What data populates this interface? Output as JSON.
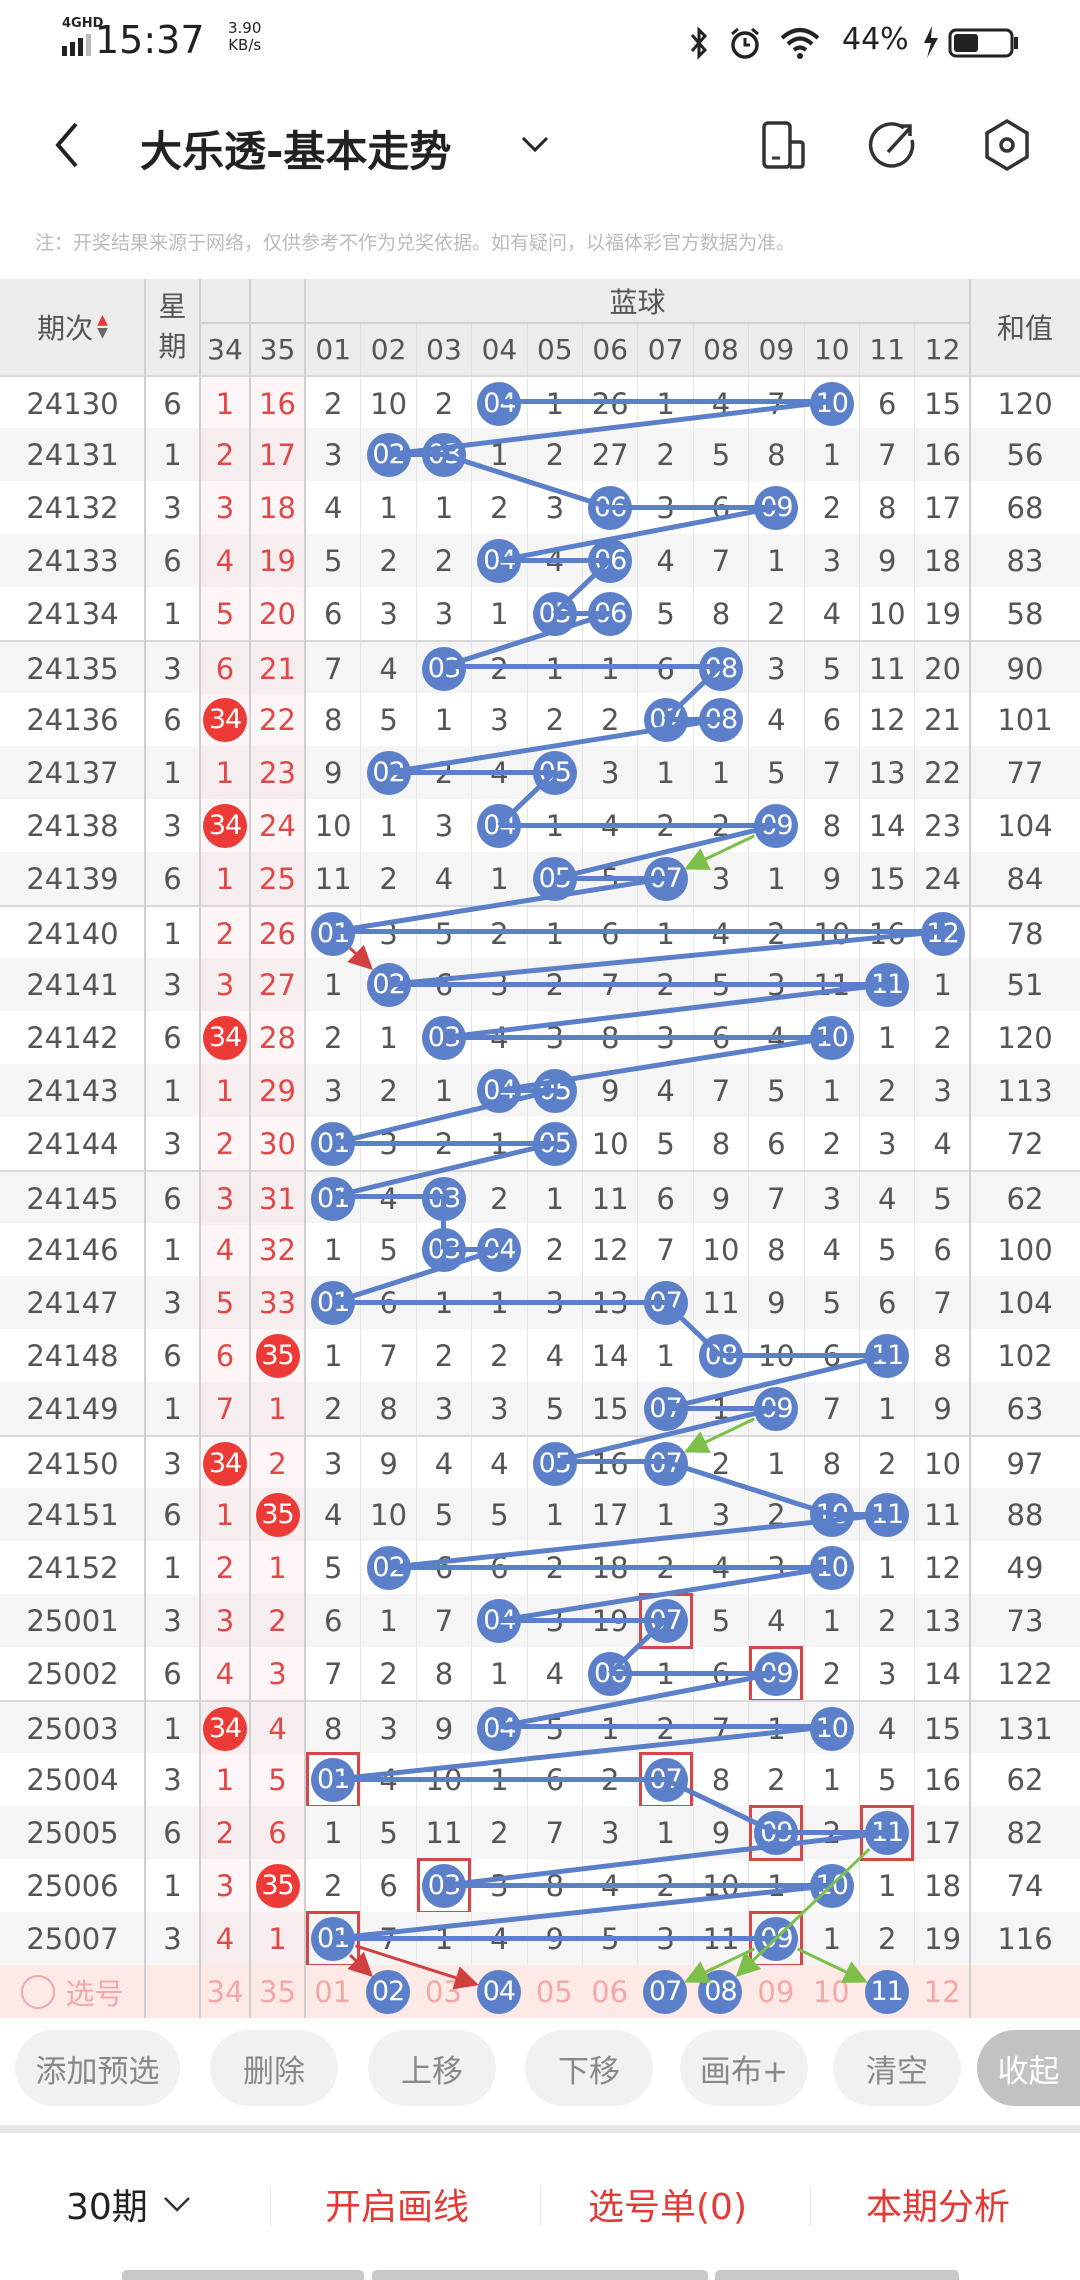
{
  "status": {
    "network": "4GHD",
    "time": "15:37",
    "speed_value": "3.90",
    "speed_unit": "KB/s",
    "battery": "44%"
  },
  "header": {
    "title": "大乐透-基本走势"
  },
  "note": "注：开奖结果来源于网络，仅供参考不作为兑奖依据。如有疑问，以福体彩官方数据为准。",
  "columns": {
    "issue": "期次",
    "weekday_top": "星",
    "weekday_bottom": "期",
    "blue_group": "蓝球",
    "red": [
      "34",
      "35"
    ],
    "blue": [
      "01",
      "02",
      "03",
      "04",
      "05",
      "06",
      "07",
      "08",
      "09",
      "10",
      "11",
      "12"
    ],
    "sum": "和值"
  },
  "colors": {
    "ball": "#5b7fc8",
    "red_ball": "#ec3b36",
    "accent": "#e53935"
  },
  "rows": [
    {
      "issue": "24130",
      "wd": "6",
      "r": [
        "1",
        "16"
      ],
      "rh": [],
      "blue": [
        "2",
        "10",
        "2",
        "04",
        "1",
        "26",
        "1",
        "4",
        "7",
        "10",
        "6",
        "15"
      ],
      "balls": [
        3,
        9
      ],
      "boxed": [],
      "sum": "120"
    },
    {
      "issue": "24131",
      "wd": "1",
      "r": [
        "2",
        "17"
      ],
      "rh": [],
      "blue": [
        "3",
        "02",
        "03",
        "1",
        "2",
        "27",
        "2",
        "5",
        "8",
        "1",
        "7",
        "16"
      ],
      "balls": [
        1,
        2
      ],
      "boxed": [],
      "sum": "56"
    },
    {
      "issue": "24132",
      "wd": "3",
      "r": [
        "3",
        "18"
      ],
      "rh": [],
      "blue": [
        "4",
        "1",
        "1",
        "2",
        "3",
        "06",
        "3",
        "6",
        "09",
        "2",
        "8",
        "17"
      ],
      "balls": [
        5,
        8
      ],
      "boxed": [],
      "sum": "68"
    },
    {
      "issue": "24133",
      "wd": "6",
      "r": [
        "4",
        "19"
      ],
      "rh": [],
      "blue": [
        "5",
        "2",
        "2",
        "04",
        "4",
        "06",
        "4",
        "7",
        "1",
        "3",
        "9",
        "18"
      ],
      "balls": [
        3,
        5
      ],
      "boxed": [],
      "sum": "83"
    },
    {
      "issue": "24134",
      "wd": "1",
      "r": [
        "5",
        "20"
      ],
      "rh": [],
      "blue": [
        "6",
        "3",
        "3",
        "1",
        "05",
        "06",
        "5",
        "8",
        "2",
        "4",
        "10",
        "19"
      ],
      "balls": [
        4,
        5
      ],
      "boxed": [],
      "sum": "58"
    },
    {
      "issue": "24135",
      "wd": "3",
      "r": [
        "6",
        "21"
      ],
      "rh": [],
      "blue": [
        "7",
        "4",
        "03",
        "2",
        "1",
        "1",
        "6",
        "08",
        "3",
        "5",
        "11",
        "20"
      ],
      "balls": [
        2,
        7
      ],
      "boxed": [],
      "sum": "90"
    },
    {
      "issue": "24136",
      "wd": "6",
      "r": [
        "34",
        "22"
      ],
      "rh": [
        0
      ],
      "blue": [
        "8",
        "5",
        "1",
        "3",
        "2",
        "2",
        "07",
        "08",
        "4",
        "6",
        "12",
        "21"
      ],
      "balls": [
        6,
        7
      ],
      "boxed": [],
      "sum": "101"
    },
    {
      "issue": "24137",
      "wd": "1",
      "r": [
        "1",
        "23"
      ],
      "rh": [],
      "blue": [
        "9",
        "02",
        "2",
        "4",
        "05",
        "3",
        "1",
        "1",
        "5",
        "7",
        "13",
        "22"
      ],
      "balls": [
        1,
        4
      ],
      "boxed": [],
      "sum": "77"
    },
    {
      "issue": "24138",
      "wd": "3",
      "r": [
        "34",
        "24"
      ],
      "rh": [
        0
      ],
      "blue": [
        "10",
        "1",
        "3",
        "04",
        "1",
        "4",
        "2",
        "2",
        "09",
        "8",
        "14",
        "23"
      ],
      "balls": [
        3,
        8
      ],
      "boxed": [],
      "sum": "104"
    },
    {
      "issue": "24139",
      "wd": "6",
      "r": [
        "1",
        "25"
      ],
      "rh": [],
      "blue": [
        "11",
        "2",
        "4",
        "1",
        "05",
        "5",
        "07",
        "3",
        "1",
        "9",
        "15",
        "24"
      ],
      "balls": [
        4,
        6
      ],
      "boxed": [],
      "sum": "84"
    },
    {
      "issue": "24140",
      "wd": "1",
      "r": [
        "2",
        "26"
      ],
      "rh": [],
      "blue": [
        "01",
        "3",
        "5",
        "2",
        "1",
        "6",
        "1",
        "4",
        "2",
        "10",
        "16",
        "12"
      ],
      "balls": [
        0,
        11
      ],
      "boxed": [],
      "sum": "78"
    },
    {
      "issue": "24141",
      "wd": "3",
      "r": [
        "3",
        "27"
      ],
      "rh": [],
      "blue": [
        "1",
        "02",
        "6",
        "3",
        "2",
        "7",
        "2",
        "5",
        "3",
        "11",
        "11",
        "1"
      ],
      "balls": [
        1,
        10
      ],
      "boxed": [],
      "sum": "51"
    },
    {
      "issue": "24142",
      "wd": "6",
      "r": [
        "34",
        "28"
      ],
      "rh": [
        0
      ],
      "blue": [
        "2",
        "1",
        "03",
        "4",
        "3",
        "8",
        "3",
        "6",
        "4",
        "10",
        "1",
        "2"
      ],
      "balls": [
        2,
        9
      ],
      "boxed": [],
      "sum": "120"
    },
    {
      "issue": "24143",
      "wd": "1",
      "r": [
        "1",
        "29"
      ],
      "rh": [],
      "blue": [
        "3",
        "2",
        "1",
        "04",
        "05",
        "9",
        "4",
        "7",
        "5",
        "1",
        "2",
        "3"
      ],
      "balls": [
        3,
        4
      ],
      "boxed": [],
      "sum": "113"
    },
    {
      "issue": "24144",
      "wd": "3",
      "r": [
        "2",
        "30"
      ],
      "rh": [],
      "blue": [
        "01",
        "3",
        "2",
        "1",
        "05",
        "10",
        "5",
        "8",
        "6",
        "2",
        "3",
        "4"
      ],
      "balls": [
        0,
        4
      ],
      "boxed": [],
      "sum": "72"
    },
    {
      "issue": "24145",
      "wd": "6",
      "r": [
        "3",
        "31"
      ],
      "rh": [],
      "blue": [
        "01",
        "4",
        "03",
        "2",
        "1",
        "11",
        "6",
        "9",
        "7",
        "3",
        "4",
        "5"
      ],
      "balls": [
        0,
        2
      ],
      "boxed": [],
      "sum": "62"
    },
    {
      "issue": "24146",
      "wd": "1",
      "r": [
        "4",
        "32"
      ],
      "rh": [],
      "blue": [
        "1",
        "5",
        "03",
        "04",
        "2",
        "12",
        "7",
        "10",
        "8",
        "4",
        "5",
        "6"
      ],
      "balls": [
        2,
        3
      ],
      "boxed": [],
      "sum": "100"
    },
    {
      "issue": "24147",
      "wd": "3",
      "r": [
        "5",
        "33"
      ],
      "rh": [],
      "blue": [
        "01",
        "6",
        "1",
        "1",
        "3",
        "13",
        "07",
        "11",
        "9",
        "5",
        "6",
        "7"
      ],
      "balls": [
        0,
        6
      ],
      "boxed": [],
      "sum": "104"
    },
    {
      "issue": "24148",
      "wd": "6",
      "r": [
        "6",
        "35"
      ],
      "rh": [
        1
      ],
      "blue": [
        "1",
        "7",
        "2",
        "2",
        "4",
        "14",
        "1",
        "08",
        "10",
        "6",
        "11",
        "8"
      ],
      "balls": [
        7,
        10
      ],
      "boxed": [],
      "sum": "102"
    },
    {
      "issue": "24149",
      "wd": "1",
      "r": [
        "7",
        "1"
      ],
      "rh": [],
      "blue": [
        "2",
        "8",
        "3",
        "3",
        "5",
        "15",
        "07",
        "1",
        "09",
        "7",
        "1",
        "9"
      ],
      "balls": [
        6,
        8
      ],
      "boxed": [],
      "sum": "63"
    },
    {
      "issue": "24150",
      "wd": "3",
      "r": [
        "34",
        "2"
      ],
      "rh": [
        0
      ],
      "blue": [
        "3",
        "9",
        "4",
        "4",
        "05",
        "16",
        "07",
        "2",
        "1",
        "8",
        "2",
        "10"
      ],
      "balls": [
        4,
        6
      ],
      "boxed": [],
      "sum": "97"
    },
    {
      "issue": "24151",
      "wd": "6",
      "r": [
        "1",
        "35"
      ],
      "rh": [
        1
      ],
      "blue": [
        "4",
        "10",
        "5",
        "5",
        "1",
        "17",
        "1",
        "3",
        "2",
        "10",
        "11",
        "11"
      ],
      "balls": [
        9,
        10
      ],
      "boxed": [],
      "sum": "88"
    },
    {
      "issue": "24152",
      "wd": "1",
      "r": [
        "2",
        "1"
      ],
      "rh": [],
      "blue": [
        "5",
        "02",
        "6",
        "6",
        "2",
        "18",
        "2",
        "4",
        "3",
        "10",
        "1",
        "12"
      ],
      "balls": [
        1,
        9
      ],
      "boxed": [],
      "sum": "49"
    },
    {
      "issue": "25001",
      "wd": "3",
      "r": [
        "3",
        "2"
      ],
      "rh": [],
      "blue": [
        "6",
        "1",
        "7",
        "04",
        "3",
        "19",
        "07",
        "5",
        "4",
        "1",
        "2",
        "13"
      ],
      "balls": [
        3,
        6
      ],
      "boxed": [
        6
      ],
      "sum": "73"
    },
    {
      "issue": "25002",
      "wd": "6",
      "r": [
        "4",
        "3"
      ],
      "rh": [],
      "blue": [
        "7",
        "2",
        "8",
        "1",
        "4",
        "06",
        "1",
        "6",
        "09",
        "2",
        "3",
        "14"
      ],
      "balls": [
        5,
        8
      ],
      "boxed": [
        8
      ],
      "sum": "122"
    },
    {
      "issue": "25003",
      "wd": "1",
      "r": [
        "34",
        "4"
      ],
      "rh": [
        0
      ],
      "blue": [
        "8",
        "3",
        "9",
        "04",
        "5",
        "1",
        "2",
        "7",
        "1",
        "10",
        "4",
        "15"
      ],
      "balls": [
        3,
        9
      ],
      "boxed": [],
      "sum": "131"
    },
    {
      "issue": "25004",
      "wd": "3",
      "r": [
        "1",
        "5"
      ],
      "rh": [],
      "blue": [
        "01",
        "4",
        "10",
        "1",
        "6",
        "2",
        "07",
        "8",
        "2",
        "1",
        "5",
        "16"
      ],
      "balls": [
        0,
        6
      ],
      "boxed": [
        0,
        6
      ],
      "sum": "62"
    },
    {
      "issue": "25005",
      "wd": "6",
      "r": [
        "2",
        "6"
      ],
      "rh": [],
      "blue": [
        "1",
        "5",
        "11",
        "2",
        "7",
        "3",
        "1",
        "9",
        "09",
        "2",
        "11",
        "17"
      ],
      "balls": [
        8,
        10
      ],
      "boxed": [
        8,
        10
      ],
      "sum": "82"
    },
    {
      "issue": "25006",
      "wd": "1",
      "r": [
        "3",
        "35"
      ],
      "rh": [
        1
      ],
      "blue": [
        "2",
        "6",
        "03",
        "3",
        "8",
        "4",
        "2",
        "10",
        "1",
        "10",
        "1",
        "18"
      ],
      "balls": [
        2,
        9
      ],
      "boxed": [
        2
      ],
      "sum": "74"
    },
    {
      "issue": "25007",
      "wd": "3",
      "r": [
        "4",
        "1"
      ],
      "rh": [],
      "blue": [
        "01",
        "7",
        "1",
        "4",
        "9",
        "5",
        "3",
        "11",
        "09",
        "1",
        "2",
        "19"
      ],
      "balls": [
        0,
        8
      ],
      "boxed": [
        0,
        8
      ],
      "sum": "116"
    }
  ],
  "selection": {
    "label": "选号",
    "red": [
      "34",
      "35"
    ],
    "blue": [
      "01",
      "02",
      "03",
      "04",
      "05",
      "06",
      "07",
      "08",
      "09",
      "10",
      "11",
      "12"
    ],
    "selected": [
      1,
      3,
      6,
      7,
      10
    ]
  },
  "arrows": [
    {
      "from": [
        8,
        8
      ],
      "to": [
        9,
        6
      ],
      "color": "#7cc04a"
    },
    {
      "from": [
        10,
        0
      ],
      "to": [
        11,
        1
      ],
      "color": "#d04040"
    },
    {
      "from": [
        19,
        8
      ],
      "to": [
        20,
        6
      ],
      "color": "#7cc04a"
    },
    {
      "from": [
        29,
        0
      ],
      "to": [
        30,
        1
      ],
      "color": "#d04040"
    },
    {
      "from": [
        29,
        0
      ],
      "to": [
        30,
        3
      ],
      "color": "#d04040"
    },
    {
      "from": [
        27,
        10
      ],
      "to": [
        30,
        7
      ],
      "color": "#7cc04a"
    },
    {
      "from": [
        29,
        8
      ],
      "to": [
        30,
        6
      ],
      "color": "#7cc04a"
    },
    {
      "from": [
        29,
        8
      ],
      "to": [
        30,
        10
      ],
      "color": "#7cc04a"
    }
  ],
  "buttons": [
    "添加预选",
    "删除",
    "上移",
    "下移",
    "画布+",
    "清空",
    "收起"
  ],
  "bottom": {
    "periods": "30期",
    "draw": "开启画线",
    "ticket": "选号单(0)",
    "analysis": "本期分析"
  }
}
